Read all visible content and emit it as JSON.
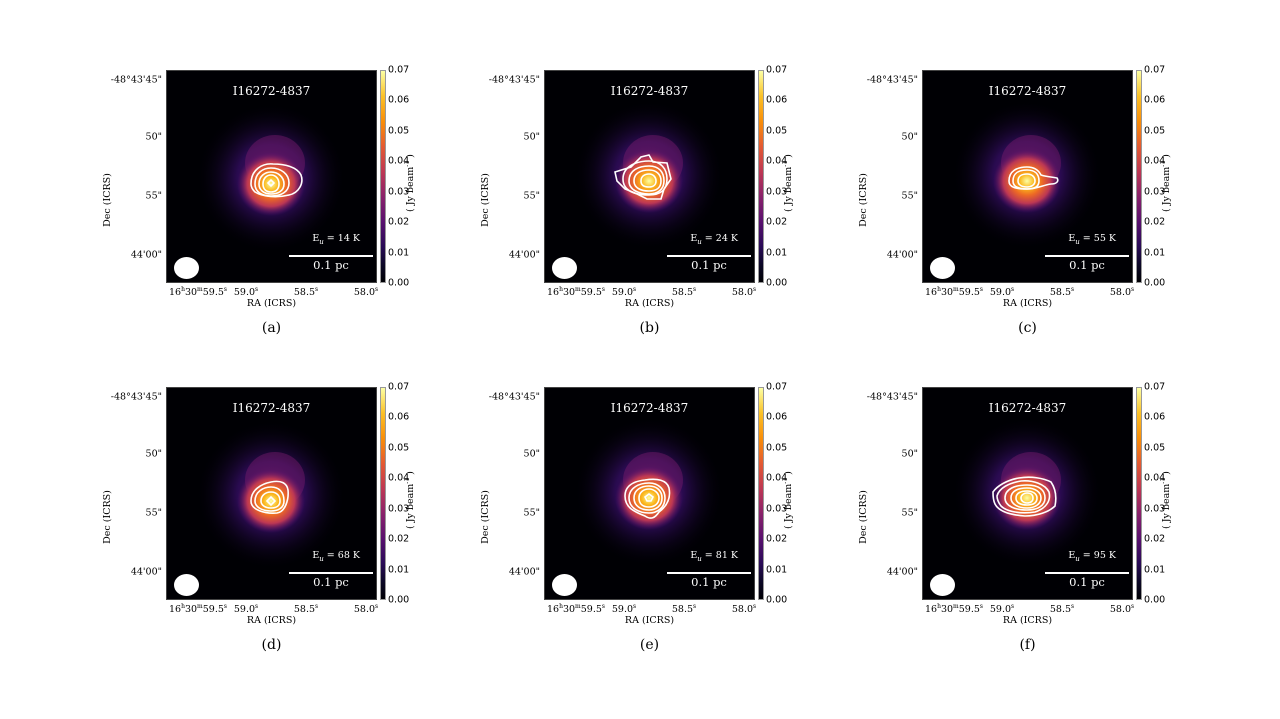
{
  "figure": {
    "source_name": "I16272-4837",
    "colorbar": {
      "label": "( Jy beam",
      "label_sup": "-1",
      "label_close": " )",
      "ticks": [
        "0.00",
        "0.01",
        "0.02",
        "0.03",
        "0.04",
        "0.05",
        "0.06",
        "0.07"
      ],
      "range": [
        0.0,
        0.07
      ],
      "colormap": "inferno"
    },
    "axes": {
      "ylabel": "Dec (ICRS)",
      "xlabel": "RA (ICRS)",
      "yticks": [
        "-48°43'45\"",
        "50\"",
        "55\"",
        "44'00\""
      ],
      "xticks": [
        {
          "h": "16",
          "m": "30",
          "s": "59.5",
          "label_prefix": "16",
          "label_h": "h",
          "label_mid": "30",
          "label_m": "m",
          "label_rest": "59.5",
          "label_s": "s"
        },
        {
          "label_rest": "59.0",
          "label_s": "s"
        },
        {
          "label_rest": "58.5",
          "label_s": "s"
        },
        {
          "label_rest": "58.0",
          "label_s": "s"
        }
      ]
    },
    "scalebar": "0.1 pc",
    "eu_prefix": "E",
    "eu_sub": "u",
    "panels": [
      {
        "caption": "(a)",
        "eu_value": " = 14 K"
      },
      {
        "caption": "(b)",
        "eu_value": " = 24 K"
      },
      {
        "caption": "(c)",
        "eu_value": " = 55 K"
      },
      {
        "caption": "(d)",
        "eu_value": " = 68 K"
      },
      {
        "caption": "(e)",
        "eu_value": " = 81 K"
      },
      {
        "caption": "(f)",
        "eu_value": " = 95 K"
      }
    ]
  }
}
